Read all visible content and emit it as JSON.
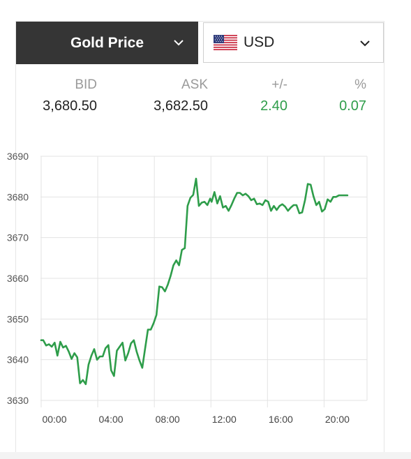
{
  "header": {
    "metal_label": "Gold Price",
    "currency_label": "USD",
    "icons": {
      "metal_dropdown": "chevron-down-icon",
      "currency_dropdown": "chevron-down-icon",
      "flag": "us-flag-icon"
    }
  },
  "quote": {
    "headers": [
      "BID",
      "ASK",
      "+/-",
      "%"
    ],
    "bid": "3,680.50",
    "ask": "3,682.50",
    "change": "2.40",
    "change_pct": "0.07"
  },
  "colors": {
    "header_bg": "#353535",
    "positive": "#2e9d4a",
    "line": "#2e9d4a",
    "grid": "#e3e3e3"
  },
  "chart_data": {
    "type": "line",
    "title": "",
    "xlabel": "",
    "ylabel": "",
    "x_ticks": [
      "00:00",
      "04:00",
      "08:00",
      "12:00",
      "16:00",
      "20:00"
    ],
    "y_ticks": [
      "3630",
      "3640",
      "3650",
      "3660",
      "3670",
      "3680",
      "3690"
    ],
    "xlim": [
      0,
      24
    ],
    "ylim": [
      3630,
      3690
    ],
    "grid": true,
    "series": [
      {
        "x": [
          0,
          0.15,
          0.35,
          0.55,
          0.75,
          0.95,
          1.15,
          1.35,
          1.55,
          1.75,
          1.95,
          2.15,
          2.35,
          2.55,
          2.75,
          2.95,
          3.15,
          3.35,
          3.55,
          3.75,
          3.95,
          4.15,
          4.35,
          4.55,
          4.75,
          4.95,
          5.15,
          5.35,
          5.55,
          5.75,
          5.95,
          6.15,
          6.35,
          6.55,
          6.75,
          6.95,
          7.15,
          7.35,
          7.55,
          7.75,
          7.95,
          8.15,
          8.35,
          8.55,
          8.75,
          8.95,
          9.15,
          9.35,
          9.55,
          9.75,
          9.95,
          10.15,
          10.35,
          10.55,
          10.75,
          10.95,
          11.15,
          11.35,
          11.55,
          11.75,
          11.95,
          12.05,
          12.25,
          12.45,
          12.65,
          12.85,
          13.05,
          13.25,
          13.45,
          13.65,
          13.85,
          14.05,
          14.25,
          14.45,
          14.65,
          14.85,
          15.05,
          15.25,
          15.45,
          15.65,
          15.85,
          16.05,
          16.25,
          16.45,
          16.65,
          16.85,
          17.05,
          17.25,
          17.45,
          17.65,
          17.85,
          18.05,
          18.25,
          18.45,
          18.65,
          18.85,
          19.05,
          19.25,
          19.45,
          19.65,
          19.85,
          20.05,
          20.25,
          20.45,
          20.65,
          20.85,
          21.05,
          21.25,
          21.45,
          21.65
        ],
        "y": [
          3644.8,
          3644.8,
          3643.5,
          3643.8,
          3643.2,
          3644.2,
          3641.0,
          3644.4,
          3643.0,
          3643.4,
          3642.0,
          3640.2,
          3641.6,
          3640.6,
          3634.2,
          3635.0,
          3634.0,
          3638.8,
          3641.0,
          3642.6,
          3640.0,
          3640.8,
          3640.8,
          3642.8,
          3643.6,
          3637.4,
          3636.0,
          3642.2,
          3643.2,
          3644.2,
          3639.8,
          3641.6,
          3644.0,
          3644.8,
          3642.0,
          3639.8,
          3638.0,
          3642.8,
          3647.4,
          3647.4,
          3649.0,
          3651.0,
          3658.0,
          3657.8,
          3656.8,
          3658.4,
          3660.6,
          3663.2,
          3664.4,
          3663.2,
          3667.0,
          3667.4,
          3677.8,
          3679.8,
          3680.5,
          3684.5,
          3677.8,
          3678.6,
          3678.8,
          3678.0,
          3679.6,
          3678.8,
          3681.2,
          3678.4,
          3680.2,
          3677.4,
          3677.8,
          3676.6,
          3678.0,
          3679.6,
          3681.0,
          3681.0,
          3680.4,
          3680.8,
          3680.2,
          3679.2,
          3679.6,
          3678.2,
          3678.4,
          3678.0,
          3679.2,
          3678.8,
          3676.6,
          3677.8,
          3676.8,
          3677.8,
          3678.2,
          3677.6,
          3676.6,
          3677.4,
          3678.0,
          3678.0,
          3676.0,
          3676.2,
          3679.2,
          3683.2,
          3683.0,
          3680.2,
          3678.0,
          3678.8,
          3676.4,
          3677.0,
          3679.4,
          3678.8,
          3680.0,
          3680.0,
          3680.4,
          3680.4,
          3680.4,
          3680.4
        ]
      }
    ]
  }
}
